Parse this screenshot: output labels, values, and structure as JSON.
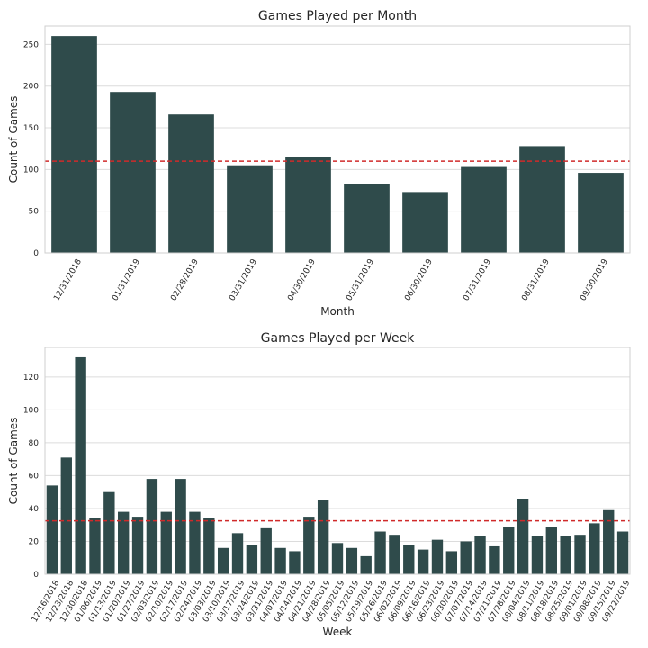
{
  "chart_data": [
    {
      "type": "bar",
      "title": "Games Played per Month",
      "xlabel": "Month",
      "ylabel": "Count of Games",
      "categories": [
        "12/31/2018",
        "01/31/2019",
        "02/28/2019",
        "03/31/2019",
        "04/30/2019",
        "05/31/2019",
        "06/30/2019",
        "07/31/2019",
        "08/31/2019",
        "09/30/2019"
      ],
      "values": [
        260,
        193,
        166,
        105,
        115,
        83,
        73,
        103,
        128,
        96
      ],
      "ylim": [
        0,
        272
      ],
      "yticks": [
        0,
        50,
        100,
        150,
        200,
        250
      ],
      "reference_line": 110,
      "bar_color": "#2f4b4b",
      "reference_line_color": "#d02a2a",
      "grid": true
    },
    {
      "type": "bar",
      "title": "Games Played per Week",
      "xlabel": "Week",
      "ylabel": "Count of Games",
      "categories": [
        "12/16/2018",
        "12/23/2018",
        "12/30/2018",
        "01/06/2019",
        "01/13/2019",
        "01/20/2019",
        "01/27/2019",
        "02/03/2019",
        "02/10/2019",
        "02/17/2019",
        "02/24/2019",
        "03/03/2019",
        "03/10/2019",
        "03/17/2019",
        "03/24/2019",
        "03/31/2019",
        "04/07/2019",
        "04/14/2019",
        "04/21/2019",
        "04/28/2019",
        "05/05/2019",
        "05/12/2019",
        "05/19/2019",
        "05/26/2019",
        "06/02/2019",
        "06/09/2019",
        "06/16/2019",
        "06/23/2019",
        "06/30/2019",
        "07/07/2019",
        "07/14/2019",
        "07/21/2019",
        "07/28/2019",
        "08/04/2019",
        "08/11/2019",
        "08/18/2019",
        "08/25/2019",
        "09/01/2019",
        "09/08/2019",
        "09/15/2019",
        "09/22/2019"
      ],
      "values": [
        54,
        71,
        132,
        34,
        50,
        38,
        35,
        58,
        38,
        58,
        38,
        34,
        16,
        25,
        18,
        28,
        16,
        14,
        35,
        45,
        19,
        16,
        11,
        26,
        24,
        18,
        15,
        21,
        14,
        20,
        23,
        17,
        29,
        46,
        23,
        29,
        23,
        24,
        31,
        39,
        26
      ],
      "ylim": [
        0,
        138
      ],
      "yticks": [
        0,
        20,
        40,
        60,
        80,
        100,
        120
      ],
      "reference_line": 32.5,
      "bar_color": "#2f4b4b",
      "reference_line_color": "#d02a2a",
      "grid": true
    }
  ]
}
